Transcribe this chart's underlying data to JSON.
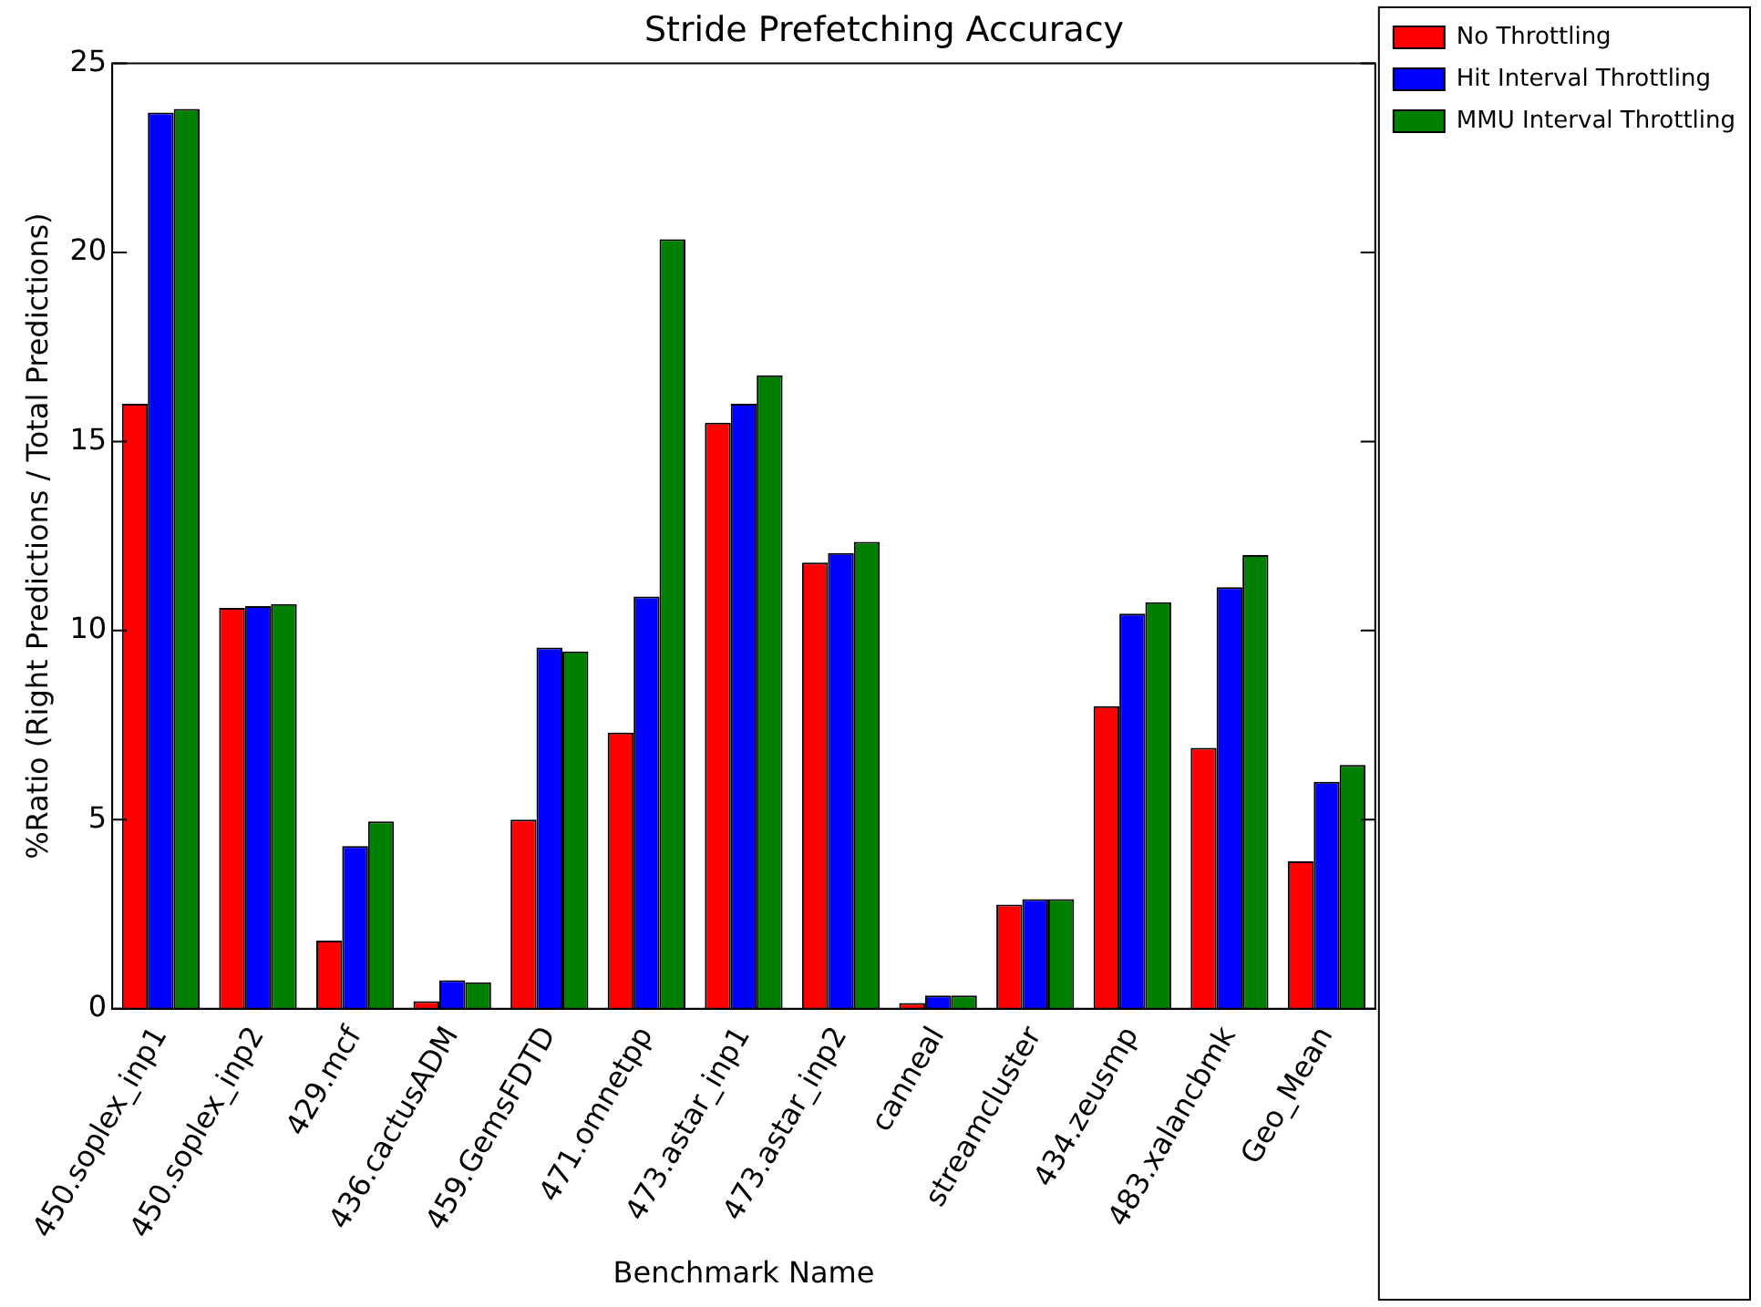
{
  "chart_data": {
    "type": "bar",
    "title": "Stride Prefetching Accuracy",
    "xlabel": "Benchmark Name",
    "ylabel": "%Ratio (Right Predictions / Total Predictions)",
    "categories": [
      "450.soplex_inp1",
      "450.soplex_inp2",
      "429.mcf",
      "436.cactusADM",
      "459.GemsFDTD",
      "471.omnetpp",
      "473.astar_inp1",
      "473.astar_inp2",
      "canneal",
      "streamcluster",
      "434.zeusmp",
      "483.xalancbmk",
      "Geo_Mean"
    ],
    "series": [
      {
        "name": "No Throttling",
        "color": "#ff0000",
        "values": [
          16.0,
          10.6,
          1.8,
          0.2,
          5.0,
          7.3,
          15.5,
          11.8,
          0.15,
          2.75,
          8.0,
          6.9,
          3.9
        ]
      },
      {
        "name": "Hit Interval Throttling",
        "color": "#0000ff",
        "values": [
          23.7,
          10.65,
          4.3,
          0.75,
          9.55,
          10.9,
          16.0,
          12.05,
          0.35,
          2.9,
          10.45,
          11.15,
          6.0
        ]
      },
      {
        "name": "MMU Interval Throttling",
        "color": "#008000",
        "values": [
          23.8,
          10.7,
          4.95,
          0.7,
          9.45,
          20.35,
          16.75,
          12.35,
          0.35,
          2.9,
          10.75,
          12.0,
          6.45
        ]
      }
    ],
    "ylim": [
      0,
      25
    ],
    "yticks": [
      0,
      5,
      10,
      15,
      20,
      25
    ],
    "grid": false,
    "legend": "top right"
  }
}
